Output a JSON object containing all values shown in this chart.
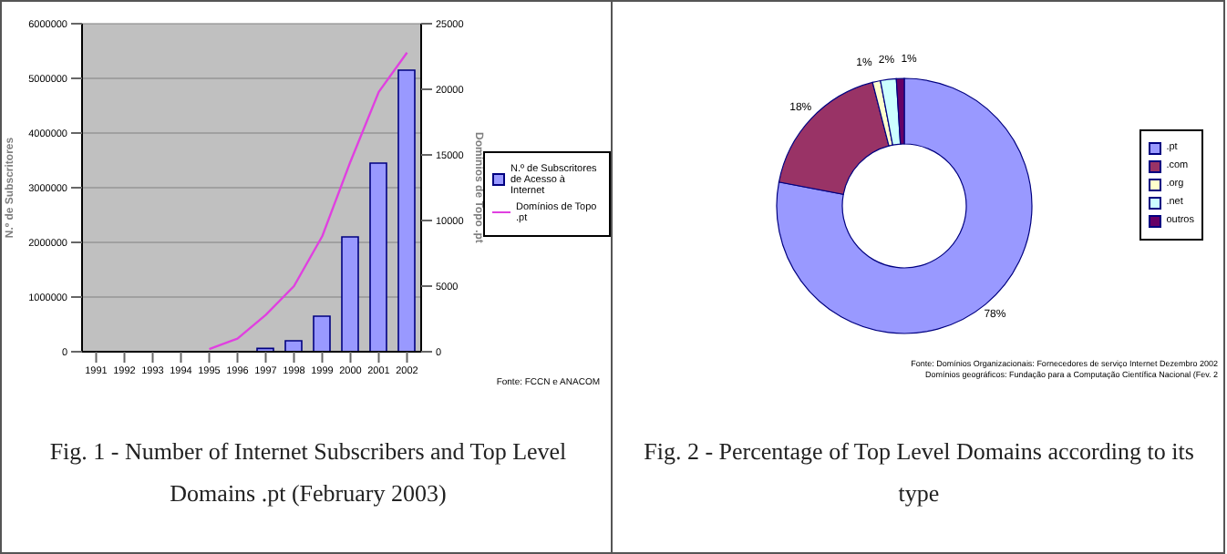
{
  "chart_data": [
    {
      "type": "bar",
      "title": "Fig. 1 - Number of Internet Subscribers and Top Level Domains .pt (February 2003)",
      "categories": [
        "1991",
        "1992",
        "1993",
        "1994",
        "1995",
        "1996",
        "1997",
        "1998",
        "1999",
        "2000",
        "2001",
        "2002"
      ],
      "ylabel": "N.º de Subscritores",
      "y2label": "Domínios de Topo .pt",
      "ylim": [
        0,
        6000000
      ],
      "yticks": [
        0,
        1000000,
        2000000,
        3000000,
        4000000,
        5000000,
        6000000
      ],
      "y2lim": [
        0,
        25000
      ],
      "y2ticks": [
        0,
        5000,
        10000,
        15000,
        20000,
        25000
      ],
      "grid": "y",
      "legend": "right",
      "marker": "none",
      "annotations": [
        "Fonte: FCCN e ANACOM"
      ],
      "series": [
        {
          "name": "N.º de Subscritores de Acesso à Internet",
          "type": "bar",
          "color": "#9999ff",
          "values": [
            null,
            null,
            null,
            null,
            null,
            null,
            60000,
            200000,
            650000,
            2100000,
            3450000,
            5150000
          ]
        },
        {
          "name": "Domínios de Topo .pt",
          "type": "line",
          "axis": "y2",
          "color": "#e040e0",
          "values": [
            null,
            null,
            null,
            null,
            200,
            1000,
            2800,
            5000,
            8800,
            14500,
            19800,
            22800
          ]
        }
      ]
    },
    {
      "type": "donut",
      "title": "Fig. 2 - Percentage of Top Level Domains according to its type",
      "categories": [
        ".pt",
        ".com",
        ".org",
        ".net",
        "outros"
      ],
      "values": [
        78,
        18,
        1,
        2,
        1
      ],
      "colors": [
        "#9999ff",
        "#993366",
        "#ffffcc",
        "#ccffff",
        "#660066"
      ],
      "value_labels": [
        "78%",
        "18%",
        "1%",
        "2%",
        "1%"
      ],
      "legend": "right",
      "annotations": [
        "Fonte:    Domínios Organizacionais: Fornecedores de serviço Internet Dezembro 2002",
        "Domínios geográficos: Fundação para a Computação Científica Nacional (Fev. 2"
      ]
    }
  ]
}
